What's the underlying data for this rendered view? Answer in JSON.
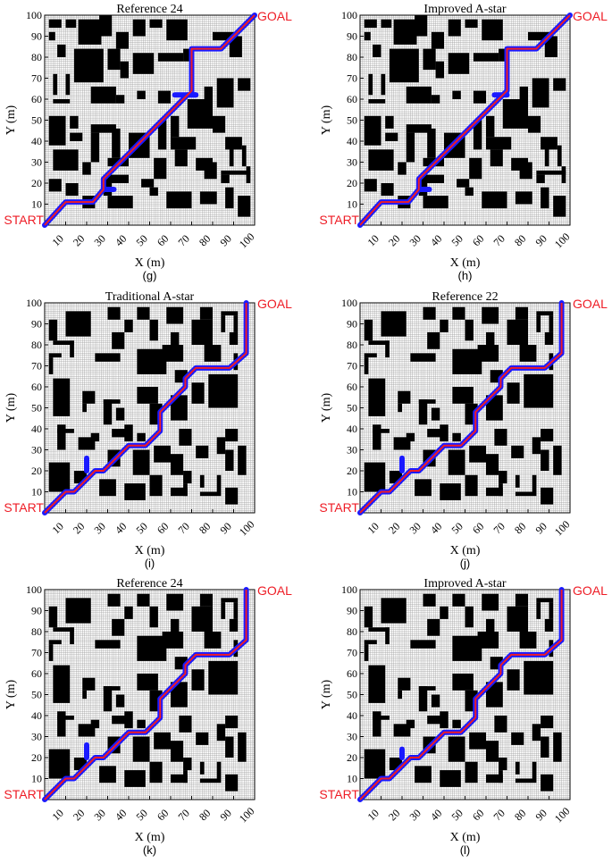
{
  "labels": {
    "start": "START",
    "goal": "GOAL",
    "xlabel": "X (m)",
    "ylabel": "Y (m)"
  },
  "ticks": {
    "y": [
      "10",
      "20",
      "30",
      "40",
      "50",
      "60",
      "70",
      "80",
      "90",
      "100"
    ],
    "x": [
      "10",
      "20",
      "30",
      "40",
      "50",
      "60",
      "70",
      "80",
      "90",
      "100"
    ]
  },
  "colors": {
    "path_red": "#ee1c25",
    "path_blue": "#1a1aff",
    "obstacle": "#000000",
    "grid": "#9a9a9a"
  },
  "panels": [
    {
      "title": "Reference 24",
      "caption": "(g)",
      "map": "A",
      "blue": [
        [
          0,
          0
        ],
        [
          10,
          11
        ],
        [
          23,
          11
        ],
        [
          28,
          17
        ],
        [
          28,
          22
        ],
        [
          68,
          62
        ],
        [
          72,
          62
        ],
        [
          70,
          62
        ],
        [
          70,
          84
        ],
        [
          84,
          84
        ],
        [
          100,
          100
        ]
      ],
      "red": [
        [
          0,
          0
        ],
        [
          10,
          11
        ],
        [
          23,
          11
        ],
        [
          28,
          17
        ],
        [
          28,
          22
        ],
        [
          68,
          62
        ],
        [
          70,
          64
        ],
        [
          70,
          84
        ],
        [
          84,
          84
        ],
        [
          100,
          100
        ]
      ],
      "blue_branches": [
        [
          [
            28,
            17
          ],
          [
            33,
            17
          ]
        ],
        [
          [
            62,
            62
          ],
          [
            72,
            62
          ]
        ]
      ]
    },
    {
      "title": "Improved A-star",
      "caption": "(h)",
      "map": "A",
      "blue": [
        [
          0,
          0
        ],
        [
          10,
          11
        ],
        [
          23,
          11
        ],
        [
          28,
          17
        ],
        [
          28,
          22
        ],
        [
          68,
          62
        ],
        [
          70,
          64
        ],
        [
          70,
          84
        ],
        [
          84,
          84
        ],
        [
          100,
          100
        ]
      ],
      "red": [
        [
          0,
          0
        ],
        [
          10,
          11
        ],
        [
          23,
          11
        ],
        [
          28,
          17
        ],
        [
          28,
          22
        ],
        [
          68,
          62
        ],
        [
          70,
          64
        ],
        [
          70,
          84
        ],
        [
          84,
          84
        ],
        [
          100,
          100
        ]
      ],
      "blue_branches": [
        [
          [
            28,
            17
          ],
          [
            33,
            17
          ]
        ],
        [
          [
            64,
            62
          ],
          [
            70,
            62
          ]
        ]
      ]
    },
    {
      "title": "Traditional A-star",
      "caption": "(i)",
      "map": "B",
      "blue": [
        [
          0,
          0
        ],
        [
          10,
          10
        ],
        [
          14,
          10
        ],
        [
          24,
          20
        ],
        [
          28,
          20
        ],
        [
          40,
          32
        ],
        [
          48,
          32
        ],
        [
          55,
          39
        ],
        [
          55,
          48
        ],
        [
          67,
          60
        ],
        [
          67,
          64
        ],
        [
          72,
          69
        ],
        [
          88,
          69
        ],
        [
          96,
          76
        ],
        [
          96,
          100
        ]
      ],
      "red": [
        [
          0,
          0
        ],
        [
          10,
          10
        ],
        [
          14,
          10
        ],
        [
          24,
          20
        ],
        [
          28,
          20
        ],
        [
          40,
          32
        ],
        [
          48,
          32
        ],
        [
          55,
          39
        ],
        [
          55,
          48
        ],
        [
          67,
          60
        ],
        [
          67,
          64
        ],
        [
          72,
          69
        ],
        [
          88,
          69
        ],
        [
          96,
          76
        ],
        [
          96,
          100
        ]
      ],
      "blue_branches": [
        [
          [
            20,
            20
          ],
          [
            20,
            26
          ]
        ]
      ]
    },
    {
      "title": "Reference 22",
      "caption": "(j)",
      "map": "B",
      "blue": [
        [
          0,
          0
        ],
        [
          10,
          10
        ],
        [
          14,
          10
        ],
        [
          24,
          20
        ],
        [
          28,
          20
        ],
        [
          40,
          32
        ],
        [
          48,
          32
        ],
        [
          55,
          39
        ],
        [
          55,
          48
        ],
        [
          67,
          60
        ],
        [
          67,
          64
        ],
        [
          72,
          69
        ],
        [
          88,
          69
        ],
        [
          96,
          76
        ],
        [
          96,
          100
        ]
      ],
      "red": [
        [
          0,
          0
        ],
        [
          10,
          10
        ],
        [
          14,
          10
        ],
        [
          24,
          20
        ],
        [
          28,
          20
        ],
        [
          40,
          32
        ],
        [
          48,
          32
        ],
        [
          55,
          39
        ],
        [
          55,
          48
        ],
        [
          67,
          60
        ],
        [
          67,
          64
        ],
        [
          72,
          69
        ],
        [
          88,
          69
        ],
        [
          96,
          76
        ],
        [
          96,
          100
        ]
      ],
      "blue_branches": [
        [
          [
            20,
            20
          ],
          [
            20,
            26
          ]
        ]
      ]
    },
    {
      "title": "Reference 24",
      "caption": "(k)",
      "map": "B",
      "blue": [
        [
          0,
          0
        ],
        [
          10,
          10
        ],
        [
          14,
          10
        ],
        [
          24,
          20
        ],
        [
          28,
          20
        ],
        [
          40,
          32
        ],
        [
          48,
          32
        ],
        [
          55,
          39
        ],
        [
          55,
          48
        ],
        [
          67,
          60
        ],
        [
          67,
          64
        ],
        [
          72,
          69
        ],
        [
          88,
          69
        ],
        [
          96,
          76
        ],
        [
          96,
          100
        ]
      ],
      "red": [
        [
          0,
          0
        ],
        [
          10,
          10
        ],
        [
          14,
          10
        ],
        [
          24,
          20
        ],
        [
          28,
          20
        ],
        [
          40,
          32
        ],
        [
          48,
          32
        ],
        [
          55,
          39
        ],
        [
          55,
          48
        ],
        [
          67,
          60
        ],
        [
          67,
          64
        ],
        [
          72,
          69
        ],
        [
          88,
          69
        ],
        [
          96,
          76
        ],
        [
          96,
          100
        ]
      ],
      "blue_branches": [
        [
          [
            20,
            20
          ],
          [
            20,
            26
          ]
        ]
      ]
    },
    {
      "title": "Improved A-star",
      "caption": "(l)",
      "map": "B",
      "blue": [
        [
          0,
          0
        ],
        [
          10,
          10
        ],
        [
          14,
          10
        ],
        [
          24,
          20
        ],
        [
          28,
          20
        ],
        [
          40,
          32
        ],
        [
          48,
          32
        ],
        [
          55,
          39
        ],
        [
          55,
          48
        ],
        [
          67,
          60
        ],
        [
          67,
          64
        ],
        [
          72,
          69
        ],
        [
          88,
          69
        ],
        [
          96,
          76
        ],
        [
          96,
          100
        ]
      ],
      "red": [
        [
          0,
          0
        ],
        [
          10,
          10
        ],
        [
          14,
          10
        ],
        [
          24,
          20
        ],
        [
          28,
          20
        ],
        [
          40,
          32
        ],
        [
          48,
          32
        ],
        [
          55,
          39
        ],
        [
          55,
          48
        ],
        [
          67,
          60
        ],
        [
          67,
          64
        ],
        [
          72,
          69
        ],
        [
          88,
          69
        ],
        [
          96,
          76
        ],
        [
          96,
          100
        ]
      ],
      "blue_branches": [
        [
          [
            20,
            20
          ],
          [
            20,
            24
          ]
        ]
      ]
    }
  ],
  "maps": {
    "A": [
      [
        2,
        94,
        6,
        4
      ],
      [
        2,
        88,
        3,
        4
      ],
      [
        10,
        94,
        5,
        4
      ],
      [
        16,
        86,
        11,
        12
      ],
      [
        26,
        90,
        6,
        10
      ],
      [
        34,
        84,
        6,
        8
      ],
      [
        42,
        90,
        6,
        8
      ],
      [
        50,
        94,
        6,
        4
      ],
      [
        58,
        88,
        10,
        10
      ],
      [
        6,
        80,
        4,
        6
      ],
      [
        14,
        68,
        14,
        16
      ],
      [
        30,
        74,
        6,
        10
      ],
      [
        36,
        70,
        4,
        8
      ],
      [
        42,
        72,
        10,
        10
      ],
      [
        54,
        78,
        12,
        4
      ],
      [
        66,
        78,
        4,
        6
      ],
      [
        80,
        88,
        12,
        4
      ],
      [
        88,
        80,
        6,
        10
      ],
      [
        4,
        62,
        2,
        10
      ],
      [
        4,
        58,
        8,
        2
      ],
      [
        10,
        62,
        2,
        10
      ],
      [
        22,
        58,
        12,
        8
      ],
      [
        34,
        58,
        4,
        4
      ],
      [
        44,
        60,
        4,
        4
      ],
      [
        54,
        58,
        6,
        6
      ],
      [
        70,
        56,
        4,
        4
      ],
      [
        76,
        60,
        4,
        6
      ],
      [
        82,
        56,
        8,
        14
      ],
      [
        92,
        64,
        6,
        6
      ],
      [
        2,
        38,
        8,
        14
      ],
      [
        12,
        46,
        4,
        6
      ],
      [
        12,
        40,
        6,
        4
      ],
      [
        22,
        30,
        4,
        14
      ],
      [
        22,
        44,
        12,
        4
      ],
      [
        32,
        32,
        4,
        14
      ],
      [
        40,
        32,
        10,
        12
      ],
      [
        54,
        36,
        4,
        14
      ],
      [
        60,
        36,
        12,
        6
      ],
      [
        60,
        42,
        4,
        10
      ],
      [
        68,
        46,
        12,
        14
      ],
      [
        80,
        44,
        6,
        8
      ],
      [
        86,
        36,
        8,
        6
      ],
      [
        88,
        28,
        2,
        10
      ],
      [
        94,
        28,
        2,
        10
      ],
      [
        4,
        26,
        12,
        10
      ],
      [
        18,
        24,
        4,
        6
      ],
      [
        30,
        28,
        10,
        4
      ],
      [
        52,
        22,
        6,
        10
      ],
      [
        62,
        28,
        6,
        8
      ],
      [
        72,
        26,
        8,
        6
      ],
      [
        84,
        24,
        14,
        2
      ],
      [
        84,
        20,
        4,
        4
      ],
      [
        96,
        20,
        2,
        8
      ],
      [
        2,
        16,
        6,
        6
      ],
      [
        10,
        14,
        6,
        6
      ],
      [
        18,
        8,
        6,
        6
      ],
      [
        28,
        14,
        4,
        6
      ],
      [
        30,
        8,
        12,
        6
      ],
      [
        46,
        18,
        6,
        4
      ],
      [
        50,
        14,
        4,
        4
      ],
      [
        58,
        8,
        12,
        8
      ],
      [
        74,
        10,
        8,
        6
      ],
      [
        86,
        8,
        4,
        10
      ],
      [
        92,
        4,
        6,
        10
      ],
      [
        28,
        20,
        12,
        4
      ],
      [
        76,
        22,
        6,
        8
      ]
    ],
    "B": [
      [
        10,
        84,
        12,
        12
      ],
      [
        30,
        92,
        6,
        6
      ],
      [
        32,
        78,
        6,
        8
      ],
      [
        38,
        86,
        4,
        6
      ],
      [
        44,
        92,
        6,
        6
      ],
      [
        50,
        82,
        4,
        10
      ],
      [
        58,
        90,
        8,
        8
      ],
      [
        60,
        76,
        4,
        10
      ],
      [
        74,
        92,
        6,
        6
      ],
      [
        84,
        94,
        8,
        2
      ],
      [
        84,
        86,
        2,
        8
      ],
      [
        90,
        86,
        2,
        8
      ],
      [
        2,
        82,
        4,
        10
      ],
      [
        4,
        80,
        10,
        2
      ],
      [
        12,
        74,
        2,
        8
      ],
      [
        24,
        72,
        12,
        4
      ],
      [
        44,
        66,
        14,
        12
      ],
      [
        56,
        72,
        10,
        8
      ],
      [
        70,
        80,
        10,
        12
      ],
      [
        76,
        72,
        8,
        8
      ],
      [
        88,
        80,
        4,
        6
      ],
      [
        2,
        66,
        2,
        8
      ],
      [
        2,
        74,
        6,
        2
      ],
      [
        90,
        68,
        2,
        8
      ],
      [
        4,
        46,
        8,
        18
      ],
      [
        18,
        52,
        6,
        6
      ],
      [
        18,
        48,
        2,
        4
      ],
      [
        28,
        42,
        4,
        12
      ],
      [
        28,
        52,
        8,
        2
      ],
      [
        34,
        44,
        4,
        6
      ],
      [
        44,
        52,
        10,
        8
      ],
      [
        50,
        42,
        6,
        10
      ],
      [
        60,
        44,
        8,
        12
      ],
      [
        70,
        52,
        6,
        10
      ],
      [
        78,
        50,
        14,
        16
      ],
      [
        62,
        62,
        6,
        6
      ],
      [
        6,
        30,
        4,
        12
      ],
      [
        6,
        38,
        8,
        2
      ],
      [
        16,
        30,
        8,
        6
      ],
      [
        22,
        34,
        4,
        4
      ],
      [
        30,
        22,
        6,
        8
      ],
      [
        42,
        18,
        8,
        12
      ],
      [
        52,
        24,
        8,
        8
      ],
      [
        60,
        18,
        6,
        10
      ],
      [
        72,
        26,
        6,
        6
      ],
      [
        82,
        28,
        4,
        8
      ],
      [
        86,
        34,
        6,
        6
      ],
      [
        92,
        18,
        4,
        14
      ],
      [
        86,
        20,
        4,
        10
      ],
      [
        66,
        14,
        4,
        6
      ],
      [
        2,
        10,
        10,
        14
      ],
      [
        14,
        14,
        6,
        6
      ],
      [
        26,
        8,
        8,
        8
      ],
      [
        38,
        6,
        10,
        8
      ],
      [
        50,
        8,
        6,
        10
      ],
      [
        60,
        8,
        8,
        4
      ],
      [
        66,
        8,
        2,
        6
      ],
      [
        74,
        8,
        10,
        2
      ],
      [
        74,
        12,
        2,
        6
      ],
      [
        82,
        10,
        2,
        8
      ],
      [
        86,
        4,
        6,
        8
      ],
      [
        32,
        36,
        8,
        4
      ],
      [
        38,
        34,
        4,
        8
      ],
      [
        64,
        32,
        6,
        8
      ],
      [
        44,
        34,
        4,
        4
      ]
    ]
  }
}
